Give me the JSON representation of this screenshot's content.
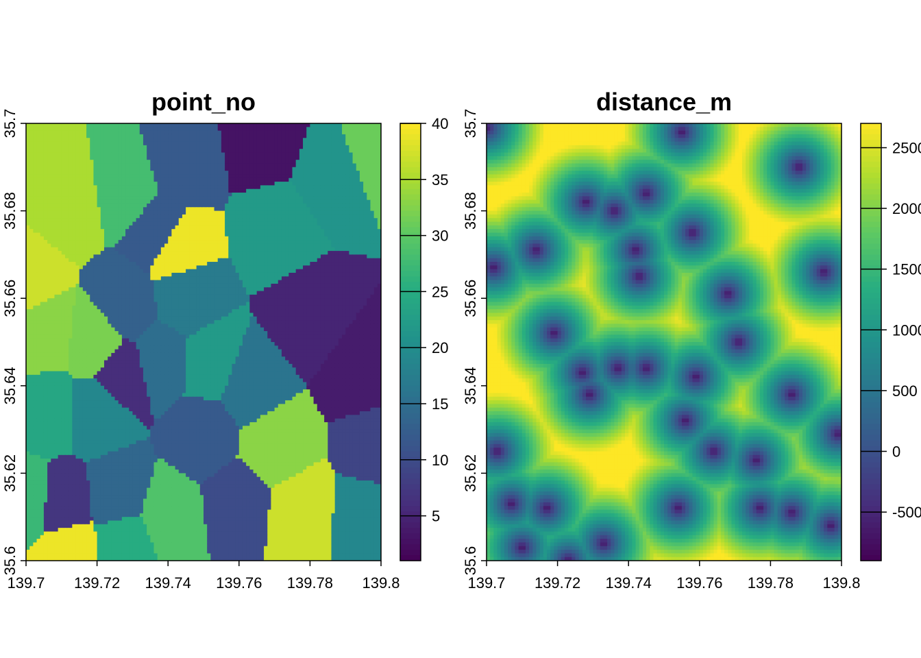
{
  "chart_data": [
    {
      "type": "heatmap",
      "title": "point_no",
      "xlabel": "",
      "ylabel": "",
      "xlim": [
        139.7,
        139.8
      ],
      "ylim": [
        35.6,
        35.7
      ],
      "x_ticks": [
        "139.7",
        "139.72",
        "139.74",
        "139.76",
        "139.78",
        "139.8"
      ],
      "y_ticks": [
        "35.6",
        "35.62",
        "35.64",
        "35.66",
        "35.68",
        "35.7"
      ],
      "colorbar": {
        "min": 1,
        "max": 40,
        "ticks": [
          "5",
          "10",
          "15",
          "20",
          "25",
          "30",
          "35",
          "40"
        ],
        "palette": [
          "#440154",
          "#472d7b",
          "#3b528b",
          "#2c728e",
          "#21918c",
          "#28ae80",
          "#5ec962",
          "#addc30",
          "#fde725"
        ]
      },
      "regions": [
        {
          "lon": 139.7,
          "lat": 35.664,
          "value": 37
        },
        {
          "lon": 139.712,
          "lat": 35.682,
          "value": 35
        },
        {
          "lon": 139.705,
          "lat": 35.652,
          "value": 33
        },
        {
          "lon": 139.72,
          "lat": 35.65,
          "value": 32
        },
        {
          "lon": 139.728,
          "lat": 35.685,
          "value": 28
        },
        {
          "lon": 139.744,
          "lat": 35.691,
          "value": 12
        },
        {
          "lon": 139.767,
          "lat": 35.696,
          "value": 3
        },
        {
          "lon": 139.786,
          "lat": 35.688,
          "value": 21
        },
        {
          "lon": 139.799,
          "lat": 35.694,
          "value": 31
        },
        {
          "lon": 139.771,
          "lat": 35.676,
          "value": 22
        },
        {
          "lon": 139.738,
          "lat": 35.675,
          "value": 12
        },
        {
          "lon": 139.742,
          "lat": 35.672,
          "value": 39
        },
        {
          "lon": 139.745,
          "lat": 35.66,
          "value": 17
        },
        {
          "lon": 139.728,
          "lat": 35.658,
          "value": 13
        },
        {
          "lon": 139.78,
          "lat": 35.656,
          "value": 5
        },
        {
          "lon": 139.795,
          "lat": 35.643,
          "value": 4
        },
        {
          "lon": 139.752,
          "lat": 35.645,
          "value": 22
        },
        {
          "lon": 139.738,
          "lat": 35.646,
          "value": 15
        },
        {
          "lon": 139.727,
          "lat": 35.643,
          "value": 6
        },
        {
          "lon": 139.763,
          "lat": 35.64,
          "value": 16
        },
        {
          "lon": 139.72,
          "lat": 35.634,
          "value": 19
        },
        {
          "lon": 139.706,
          "lat": 35.634,
          "value": 24
        },
        {
          "lon": 139.75,
          "lat": 35.629,
          "value": 12
        },
        {
          "lon": 139.77,
          "lat": 35.626,
          "value": 33
        },
        {
          "lon": 139.799,
          "lat": 35.626,
          "value": 9
        },
        {
          "lon": 139.796,
          "lat": 35.61,
          "value": 19
        },
        {
          "lon": 139.777,
          "lat": 35.611,
          "value": 37
        },
        {
          "lon": 139.76,
          "lat": 35.613,
          "value": 10
        },
        {
          "lon": 139.74,
          "lat": 35.61,
          "value": 29
        },
        {
          "lon": 139.726,
          "lat": 35.615,
          "value": 14
        },
        {
          "lon": 139.71,
          "lat": 35.613,
          "value": 7
        },
        {
          "lon": 139.701,
          "lat": 35.614,
          "value": 27
        },
        {
          "lon": 139.712,
          "lat": 35.602,
          "value": 39
        },
        {
          "lon": 139.728,
          "lat": 35.604,
          "value": 25
        }
      ]
    },
    {
      "type": "heatmap",
      "title": "distance_m",
      "xlabel": "",
      "ylabel": "",
      "xlim": [
        139.7,
        139.8
      ],
      "ylim": [
        35.6,
        35.7
      ],
      "x_ticks": [
        "139.7",
        "139.72",
        "139.74",
        "139.76",
        "139.78",
        "139.8"
      ],
      "y_ticks": [
        "35.6",
        "35.62",
        "35.64",
        "35.66",
        "35.68",
        "35.7"
      ],
      "colorbar": {
        "min": -900,
        "max": 2700,
        "ticks": [
          "-500",
          "0",
          "500",
          "1000",
          "1500",
          "2000",
          "2500"
        ],
        "tick_values": [
          -500,
          0,
          500,
          1000,
          1500,
          2000,
          2500
        ],
        "palette": [
          "#440154",
          "#472d7b",
          "#3b528b",
          "#2c728e",
          "#21918c",
          "#28ae80",
          "#5ec962",
          "#addc30",
          "#fde725"
        ]
      },
      "points": [
        {
          "lon": 139.7,
          "lat": 35.699
        },
        {
          "lon": 139.745,
          "lat": 35.684
        },
        {
          "lon": 139.758,
          "lat": 35.675
        },
        {
          "lon": 139.714,
          "lat": 35.671
        },
        {
          "lon": 139.702,
          "lat": 35.667
        },
        {
          "lon": 139.743,
          "lat": 35.665
        },
        {
          "lon": 139.742,
          "lat": 35.671
        },
        {
          "lon": 139.728,
          "lat": 35.682
        },
        {
          "lon": 139.736,
          "lat": 35.68
        },
        {
          "lon": 139.755,
          "lat": 35.698
        },
        {
          "lon": 139.788,
          "lat": 35.69
        },
        {
          "lon": 139.795,
          "lat": 35.666
        },
        {
          "lon": 139.768,
          "lat": 35.661
        },
        {
          "lon": 139.771,
          "lat": 35.65
        },
        {
          "lon": 139.719,
          "lat": 35.652
        },
        {
          "lon": 139.727,
          "lat": 35.643
        },
        {
          "lon": 139.737,
          "lat": 35.644
        },
        {
          "lon": 139.745,
          "lat": 35.644
        },
        {
          "lon": 139.759,
          "lat": 35.642
        },
        {
          "lon": 139.729,
          "lat": 35.638
        },
        {
          "lon": 139.786,
          "lat": 35.638
        },
        {
          "lon": 139.756,
          "lat": 35.632
        },
        {
          "lon": 139.703,
          "lat": 35.625
        },
        {
          "lon": 139.764,
          "lat": 35.625
        },
        {
          "lon": 139.776,
          "lat": 35.623
        },
        {
          "lon": 139.799,
          "lat": 35.629
        },
        {
          "lon": 139.707,
          "lat": 35.613
        },
        {
          "lon": 139.717,
          "lat": 35.612
        },
        {
          "lon": 139.754,
          "lat": 35.612
        },
        {
          "lon": 139.777,
          "lat": 35.612
        },
        {
          "lon": 139.786,
          "lat": 35.611
        },
        {
          "lon": 139.797,
          "lat": 35.608
        },
        {
          "lon": 139.733,
          "lat": 35.604
        },
        {
          "lon": 139.71,
          "lat": 35.603
        },
        {
          "lon": 139.723,
          "lat": 35.6
        }
      ]
    }
  ]
}
